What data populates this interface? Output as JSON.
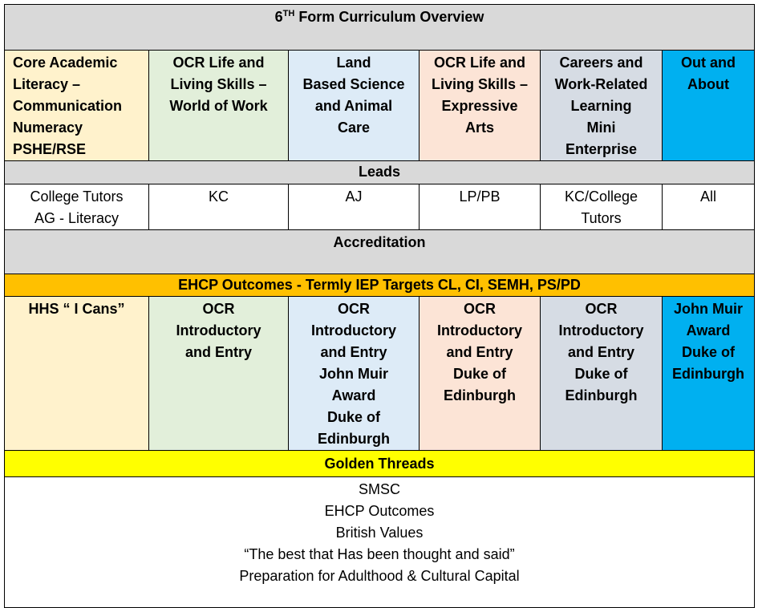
{
  "title": {
    "prefix": "6",
    "sup": "TH",
    "rest": " Form Curriculum Overview"
  },
  "subjects": [
    {
      "lines": [
        "Core Academic",
        "Literacy –",
        "Communication",
        "Numeracy",
        "PSHE/RSE"
      ]
    },
    {
      "lines": [
        "OCR Life and",
        "Living Skills –",
        "World of Work"
      ]
    },
    {
      "lines": [
        "Land",
        "Based Science",
        "and Animal",
        "Care"
      ]
    },
    {
      "lines": [
        "OCR Life and",
        "Living Skills –",
        "Expressive",
        "Arts"
      ]
    },
    {
      "lines": [
        "Careers and",
        "Work-Related",
        "Learning",
        "Mini",
        "Enterprise"
      ]
    },
    {
      "lines": [
        "Out and",
        "About"
      ]
    }
  ],
  "leads_heading": "Leads",
  "leads": [
    {
      "lines": [
        "College Tutors",
        "AG  - Literacy"
      ]
    },
    {
      "lines": [
        "KC"
      ]
    },
    {
      "lines": [
        "AJ"
      ]
    },
    {
      "lines": [
        "LP/PB"
      ]
    },
    {
      "lines": [
        "KC/College",
        "Tutors"
      ]
    },
    {
      "lines": [
        "All"
      ]
    }
  ],
  "accreditation_heading": "Accreditation",
  "ehcp_heading": "EHCP Outcomes  - Termly IEP Targets  CL, CI, SEMH, PS/PD",
  "accreditations": [
    {
      "lines": [
        "HHS “ I Cans”"
      ]
    },
    {
      "lines": [
        "OCR",
        "Introductory",
        "and Entry"
      ]
    },
    {
      "lines": [
        "OCR",
        "Introductory",
        "and Entry",
        "John Muir",
        "Award",
        "Duke of",
        "Edinburgh"
      ]
    },
    {
      "lines": [
        "OCR",
        "Introductory",
        "and Entry",
        "Duke of",
        "Edinburgh"
      ]
    },
    {
      "lines": [
        "OCR",
        "Introductory",
        "and Entry",
        "Duke of",
        "Edinburgh"
      ]
    },
    {
      "lines": [
        "John Muir",
        "Award",
        "Duke of",
        "Edinburgh"
      ]
    }
  ],
  "golden_threads_heading": "Golden Threads",
  "golden_threads": [
    "SMSC",
    "EHCP Outcomes",
    "British Values",
    "“The best that Has been thought and said”",
    "Preparation for Adulthood & Cultural Capital"
  ],
  "colors": {
    "header_grey": "#d9d9d9",
    "core": "#fff2cc",
    "world_of_work": "#e2efda",
    "land_based": "#ddebf7",
    "expressive_arts": "#fce4d6",
    "careers": "#d6dce4",
    "out_and_about": "#00b0f0",
    "ehcp_band": "#ffc000",
    "golden_threads_band": "#ffff00"
  }
}
